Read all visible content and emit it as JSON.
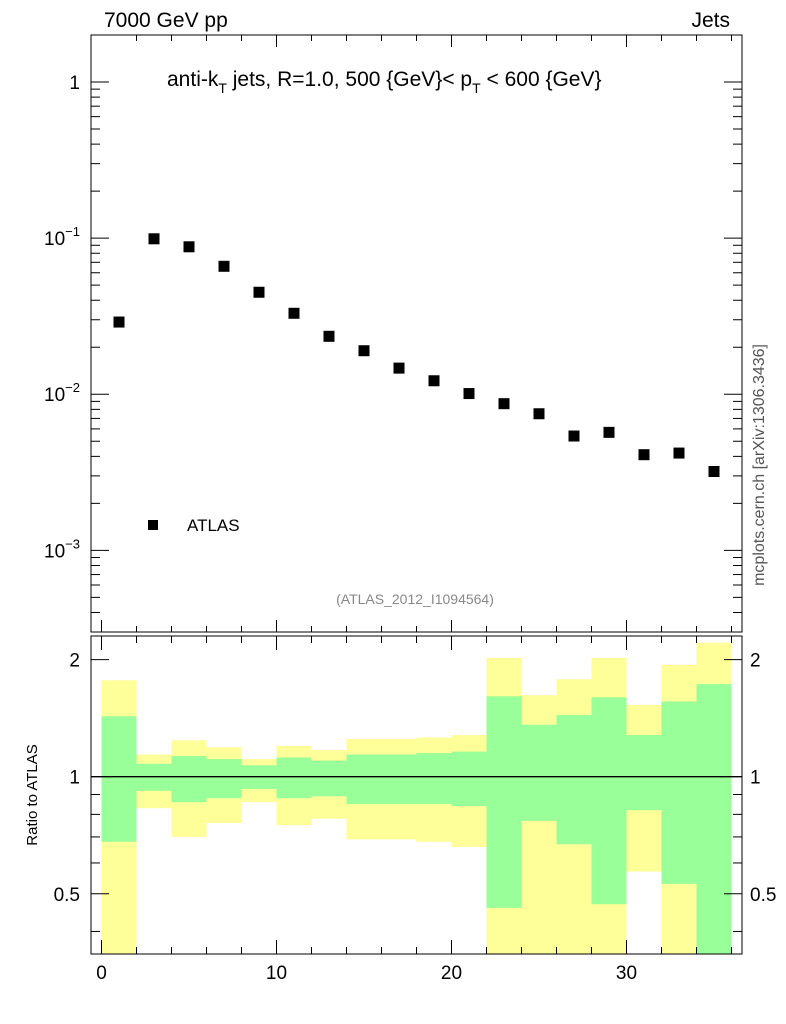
{
  "header": {
    "left": "7000 GeV pp",
    "right": "Jets"
  },
  "side_label": "mcplots.cern.ch [arXiv:1306.3436]",
  "chart_data": [
    {
      "type": "scatter",
      "title": "anti-k_T jets, R=1.0, 500 {GeV}< p_T < 600 {GeV}",
      "title_parts": {
        "a": "anti-k",
        "a_sub": "T",
        "b": " jets, R=1.0, 500 {GeV}< p",
        "b_sub": "T",
        "c": " < 600 {GeV}"
      },
      "yscale": "log",
      "ylim": [
        0.0003,
        2.0
      ],
      "xlim": [
        -0.6,
        36.6
      ],
      "ytick_labels": [
        {
          "base": "1",
          "exp": ""
        },
        {
          "base": "10",
          "exp": "−1"
        },
        {
          "base": "10",
          "exp": "−2"
        },
        {
          "base": "10",
          "exp": "−3"
        }
      ],
      "ytick_values": [
        1,
        0.1,
        0.01,
        0.001
      ],
      "annotation": "(ATLAS_2012_I1094564)",
      "legend": {
        "label": "ATLAS",
        "position": "bottom-left"
      },
      "series": [
        {
          "name": "ATLAS",
          "color": "#000000",
          "x": [
            1,
            3,
            5,
            7,
            9,
            11,
            13,
            15,
            17,
            19,
            21,
            23,
            25,
            27,
            29,
            31,
            33,
            35
          ],
          "y": [
            0.029,
            0.099,
            0.088,
            0.066,
            0.045,
            0.033,
            0.0235,
            0.019,
            0.0147,
            0.0122,
            0.0101,
            0.0087,
            0.0075,
            0.0054,
            0.0057,
            0.0041,
            0.0042,
            0.0032
          ]
        }
      ]
    },
    {
      "type": "area",
      "ylabel": "Ratio to ATLAS",
      "ylim": [
        0.35,
        2.3
      ],
      "xlim": [
        -0.6,
        36.6
      ],
      "ytick_labels": [
        "0.5",
        "1",
        "2"
      ],
      "ytick_values": [
        0.5,
        1,
        2
      ],
      "xtick_labels": [
        "0",
        "10",
        "20",
        "30"
      ],
      "xtick_values": [
        0,
        10,
        20,
        30
      ],
      "reference_line": 1,
      "bin_edges": [
        0,
        2,
        4,
        6,
        8,
        10,
        12,
        14,
        16,
        18,
        20,
        22,
        24,
        26,
        28,
        30,
        32,
        34,
        36
      ],
      "bands": [
        {
          "name": "",
          "color": "#ffff99",
          "low": [
            0.35,
            0.83,
            0.7,
            0.76,
            0.86,
            0.75,
            0.78,
            0.69,
            0.69,
            0.68,
            0.66,
            0.35,
            0.35,
            0.35,
            0.35,
            0.57,
            0.35,
            0.35
          ],
          "high": [
            1.77,
            1.14,
            1.24,
            1.19,
            1.11,
            1.2,
            1.17,
            1.25,
            1.25,
            1.26,
            1.28,
            2.02,
            1.62,
            1.78,
            2.02,
            1.53,
            1.94,
            2.21
          ]
        },
        {
          "name": "",
          "color": "#99ff99",
          "low": [
            0.68,
            0.92,
            0.86,
            0.88,
            0.93,
            0.88,
            0.89,
            0.85,
            0.85,
            0.85,
            0.84,
            0.46,
            0.77,
            0.67,
            0.47,
            0.82,
            0.53,
            0.35
          ],
          "high": [
            1.43,
            1.08,
            1.13,
            1.11,
            1.07,
            1.12,
            1.1,
            1.14,
            1.14,
            1.15,
            1.16,
            1.61,
            1.36,
            1.44,
            1.6,
            1.28,
            1.56,
            1.73
          ]
        }
      ]
    }
  ]
}
